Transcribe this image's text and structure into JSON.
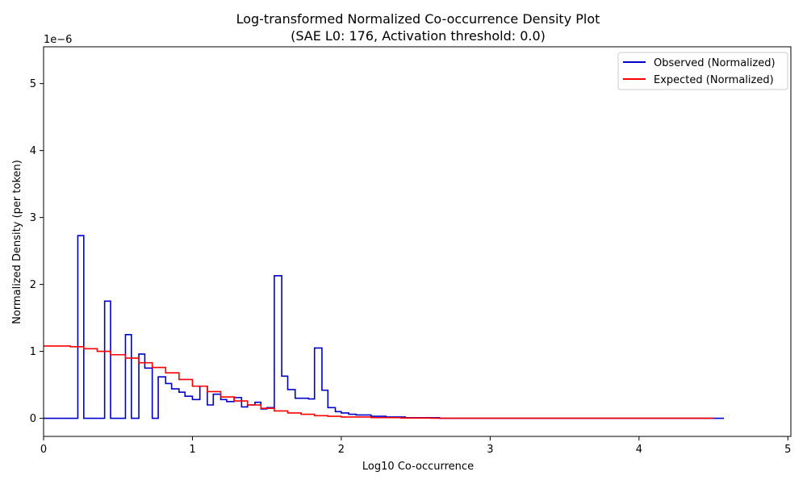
{
  "chart_data": {
    "type": "line",
    "title": "Log-transformed Normalized Co-occurrence Density Plot",
    "subtitle": "(SAE L0: 176, Activation threshold: 0.0)",
    "xlabel": "Log10 Co-occurrence",
    "ylabel": "Normalized Density (per token)",
    "y_offset_label": "1e−6",
    "xlim": [
      0,
      5.02
    ],
    "ylim": [
      -0.27,
      5.55
    ],
    "x_ticks": [
      0,
      1,
      2,
      3,
      4,
      5
    ],
    "x_tick_labels": [
      "0",
      "1",
      "2",
      "3",
      "4",
      "5"
    ],
    "y_ticks": [
      0,
      1,
      2,
      3,
      4,
      5
    ],
    "y_tick_labels": [
      "0",
      "1",
      "2",
      "3",
      "4",
      "5"
    ],
    "grid": false,
    "legend_position": "top-right",
    "series": [
      {
        "name": "Observed (Normalized)",
        "color": "#0000cc",
        "step_edges": [
          0,
          0.23,
          0.27,
          0.41,
          0.45,
          0.55,
          0.59,
          0.64,
          0.68,
          0.73,
          0.77,
          0.82,
          0.86,
          0.91,
          0.95,
          1.0,
          1.05,
          1.1,
          1.14,
          1.19,
          1.23,
          1.28,
          1.33,
          1.37,
          1.42,
          1.46,
          1.5,
          1.55,
          1.6,
          1.64,
          1.69,
          1.73,
          1.78,
          1.82,
          1.87,
          1.91,
          1.96,
          2.0,
          2.05,
          2.1,
          2.14,
          2.2,
          2.3,
          2.43,
          2.66,
          2.82,
          4.57
        ],
        "values": [
          0,
          2.73,
          0,
          1.75,
          0,
          1.25,
          0,
          0.96,
          0.75,
          0,
          0.62,
          0.52,
          0.44,
          0.39,
          0.33,
          0.28,
          0.48,
          0.2,
          0.36,
          0.28,
          0.25,
          0.31,
          0.17,
          0.2,
          0.24,
          0.14,
          0.16,
          2.13,
          0.63,
          0.43,
          0.3,
          0.3,
          0.29,
          1.05,
          0.42,
          0.16,
          0.1,
          0.08,
          0.06,
          0.05,
          0.05,
          0.03,
          0.02,
          0.01,
          0,
          0
        ]
      },
      {
        "name": "Expected (Normalized)",
        "color": "#ff0000",
        "step_edges": [
          0,
          0.18,
          0.27,
          0.36,
          0.45,
          0.55,
          0.64,
          0.73,
          0.82,
          0.91,
          1.0,
          1.1,
          1.19,
          1.28,
          1.37,
          1.46,
          1.55,
          1.64,
          1.73,
          1.82,
          1.91,
          2.0,
          2.2,
          2.4,
          2.6,
          4.5
        ],
        "values": [
          1.08,
          1.07,
          1.04,
          1.0,
          0.95,
          0.9,
          0.83,
          0.76,
          0.68,
          0.58,
          0.48,
          0.4,
          0.32,
          0.26,
          0.2,
          0.15,
          0.11,
          0.08,
          0.06,
          0.04,
          0.03,
          0.02,
          0.01,
          0.005,
          0.002
        ]
      }
    ]
  }
}
